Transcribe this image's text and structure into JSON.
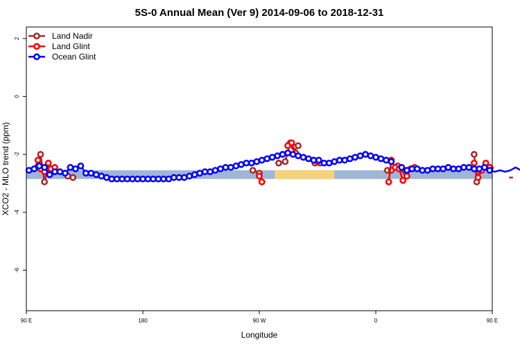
{
  "chart_data": {
    "type": "line",
    "title": "5S-0 Annual Mean (Ver 9)   2014-09-06 to 2018-12-31",
    "xlabel": "Longitude",
    "ylabel": "XCO2 - MLO trend (ppm)",
    "xlim": [
      90,
      450
    ],
    "ylim": [
      -7.4,
      2.4
    ],
    "x_ticks": [
      {
        "value": 90,
        "label": "90 E"
      },
      {
        "value": 180,
        "label": "180"
      },
      {
        "value": 270,
        "label": "90 W"
      },
      {
        "value": 360,
        "label": "0"
      },
      {
        "value": 450,
        "label": "90 E"
      },
      {
        "value": 540,
        "label": "180"
      }
    ],
    "y_ticks": [
      {
        "value": 2,
        "label": "2"
      },
      {
        "value": 0,
        "label": "0"
      },
      {
        "value": -2,
        "label": "-2"
      },
      {
        "value": -4,
        "label": "-4"
      },
      {
        "value": -6,
        "label": "-6"
      }
    ],
    "legend_position": "top-left",
    "bands": [
      {
        "name": "reference band",
        "color": "#9fb6d6",
        "x": [
          90,
          450
        ],
        "y": [
          -2.85,
          -2.55
        ]
      },
      {
        "name": "land band",
        "color": "#f5d27a",
        "x": [
          282,
          328
        ],
        "y": [
          -2.85,
          -2.55
        ]
      }
    ],
    "series": [
      {
        "name": "Land Nadir",
        "color": "#a52a2a",
        "segments": [
          [
            [
              99,
              -2.4
            ],
            [
              101,
              -2.0
            ],
            [
              104,
              -2.95
            ],
            [
              106,
              -2.55
            ],
            [
              108,
              -2.5
            ],
            [
              111,
              -2.6
            ]
          ],
          [
            [
              122,
              -2.75
            ],
            [
              126,
              -2.8
            ]
          ],
          [
            [
              265,
              -2.55
            ],
            [
              270,
              -2.65
            ]
          ],
          [
            [
              285,
              -2.3
            ],
            [
              290,
              -2.25
            ],
            [
              294,
              -1.6
            ],
            [
              297,
              -1.75
            ],
            [
              300,
              -1.7
            ]
          ],
          [
            [
              313,
              -2.3
            ],
            [
              317,
              -2.3
            ]
          ],
          [
            [
              369,
              -2.55
            ],
            [
              372,
              -2.55
            ]
          ],
          [
            [
              377,
              -2.4
            ],
            [
              380,
              -2.5
            ],
            [
              383,
              -2.6
            ]
          ],
          [
            [
              436,
              -2.0
            ],
            [
              438,
              -2.95
            ],
            [
              441,
              -2.55
            ]
          ],
          [
            [
              448,
              -2.45
            ],
            [
              451,
              -2.5
            ]
          ],
          [
            [
              463,
              -2.8
            ],
            [
              466,
              -2.8
            ]
          ]
        ]
      },
      {
        "name": "Land Glint",
        "color": "#ff0000",
        "segments": [
          [
            [
              99,
              -2.2
            ],
            [
              101,
              -2.5
            ],
            [
              104,
              -2.6
            ],
            [
              107,
              -2.3
            ],
            [
              109,
              -2.5
            ],
            [
              112,
              -2.45
            ]
          ],
          [
            [
              270,
              -2.75
            ],
            [
              272,
              -2.95
            ]
          ],
          [
            [
              292,
              -1.7
            ],
            [
              295,
              -1.6
            ],
            [
              298,
              -1.95
            ]
          ],
          [
            [
              312,
              -2.2
            ],
            [
              315,
              -2.25
            ]
          ],
          [
            [
              370,
              -2.95
            ],
            [
              372,
              -2.2
            ],
            [
              375,
              -2.45
            ],
            [
              378,
              -2.5
            ],
            [
              381,
              -2.9
            ],
            [
              384,
              -2.75
            ],
            [
              387,
              -2.5
            ],
            [
              390,
              -2.45
            ]
          ],
          [
            [
              436,
              -2.3
            ],
            [
              439,
              -2.8
            ],
            [
              442,
              -2.55
            ],
            [
              445,
              -2.3
            ],
            [
              448,
              -2.45
            ],
            [
              451,
              -2.45
            ]
          ]
        ]
      },
      {
        "name": "Ocean Glint",
        "color": "#0000ff",
        "segments": [
          [
            [
              92,
              -2.55
            ],
            [
              96,
              -2.5
            ],
            [
              100,
              -2.4
            ],
            [
              104,
              -2.45
            ],
            [
              108,
              -2.7
            ],
            [
              112,
              -2.6
            ],
            [
              116,
              -2.6
            ],
            [
              120,
              -2.65
            ],
            [
              124,
              -2.45
            ],
            [
              128,
              -2.5
            ],
            [
              132,
              -2.4
            ],
            [
              136,
              -2.65
            ],
            [
              140,
              -2.65
            ],
            [
              144,
              -2.7
            ],
            [
              148,
              -2.75
            ],
            [
              152,
              -2.8
            ],
            [
              156,
              -2.85
            ],
            [
              160,
              -2.85
            ],
            [
              164,
              -2.85
            ],
            [
              168,
              -2.85
            ],
            [
              172,
              -2.85
            ],
            [
              176,
              -2.85
            ],
            [
              180,
              -2.85
            ],
            [
              184,
              -2.85
            ],
            [
              188,
              -2.85
            ],
            [
              192,
              -2.85
            ],
            [
              196,
              -2.85
            ],
            [
              200,
              -2.85
            ],
            [
              204,
              -2.8
            ],
            [
              208,
              -2.8
            ],
            [
              212,
              -2.8
            ],
            [
              216,
              -2.75
            ],
            [
              220,
              -2.7
            ],
            [
              224,
              -2.65
            ],
            [
              228,
              -2.6
            ],
            [
              232,
              -2.6
            ],
            [
              236,
              -2.55
            ],
            [
              240,
              -2.5
            ],
            [
              244,
              -2.45
            ],
            [
              248,
              -2.45
            ],
            [
              252,
              -2.4
            ],
            [
              256,
              -2.35
            ],
            [
              260,
              -2.3
            ],
            [
              264,
              -2.3
            ],
            [
              268,
              -2.25
            ],
            [
              272,
              -2.2
            ],
            [
              276,
              -2.15
            ],
            [
              280,
              -2.1
            ],
            [
              284,
              -2.05
            ],
            [
              288,
              -2.0
            ],
            [
              292,
              -1.95
            ],
            [
              296,
              -2.0
            ],
            [
              300,
              -2.05
            ],
            [
              304,
              -2.1
            ],
            [
              308,
              -2.15
            ],
            [
              312,
              -2.2
            ],
            [
              316,
              -2.2
            ],
            [
              320,
              -2.3
            ],
            [
              324,
              -2.3
            ],
            [
              328,
              -2.25
            ],
            [
              332,
              -2.2
            ],
            [
              336,
              -2.2
            ],
            [
              340,
              -2.15
            ],
            [
              344,
              -2.1
            ],
            [
              348,
              -2.05
            ]
          ],
          [
            [
              352,
              -2.0
            ],
            [
              356,
              -2.05
            ]
          ],
          [
            [
              360,
              -2.1
            ],
            [
              364,
              -2.15
            ],
            [
              368,
              -2.2
            ],
            [
              372,
              -2.25
            ]
          ],
          [
            [
              380,
              -2.45
            ],
            [
              384,
              -2.55
            ],
            [
              388,
              -2.5
            ],
            [
              392,
              -2.5
            ],
            [
              396,
              -2.55
            ],
            [
              400,
              -2.55
            ],
            [
              404,
              -2.5
            ],
            [
              408,
              -2.5
            ],
            [
              412,
              -2.5
            ],
            [
              416,
              -2.45
            ],
            [
              420,
              -2.5
            ],
            [
              424,
              -2.5
            ],
            [
              428,
              -2.45
            ],
            [
              432,
              -2.45
            ],
            [
              436,
              -2.5
            ],
            [
              440,
              -2.5
            ],
            [
              444,
              -2.45
            ],
            [
              448,
              -2.55
            ],
            [
              452,
              -2.6
            ],
            [
              456,
              -2.55
            ],
            [
              460,
              -2.6
            ],
            [
              464,
              -2.55
            ],
            [
              468,
              -2.45
            ],
            [
              472,
              -2.55
            ],
            [
              476,
              -2.6
            ],
            [
              480,
              -2.65
            ],
            [
              484,
              -2.65
            ],
            [
              488,
              -2.7
            ],
            [
              492,
              -2.75
            ],
            [
              496,
              -2.75
            ]
          ]
        ]
      }
    ]
  }
}
